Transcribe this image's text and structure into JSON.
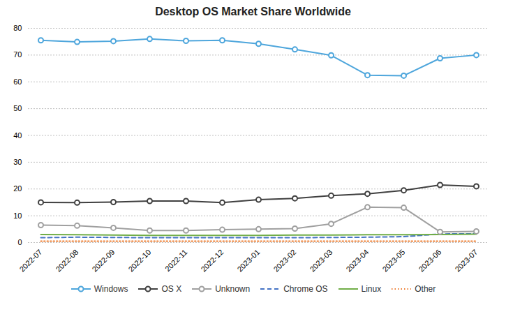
{
  "chart_data": {
    "type": "line",
    "title": "Desktop OS Market Share Worldwide",
    "categories": [
      "2022-07",
      "2022-08",
      "2022-09",
      "2022-10",
      "2022-11",
      "2022-12",
      "2023-01",
      "2023-02",
      "2023-03",
      "2023-04",
      "2023-05",
      "2023-06",
      "2023-07"
    ],
    "series": [
      {
        "name": "Windows",
        "color": "#4ea6dc",
        "marker": "circle",
        "line_style": "solid",
        "values": [
          75.5,
          74.9,
          75.2,
          76.0,
          75.3,
          75.5,
          74.2,
          72.1,
          69.9,
          62.5,
          62.3,
          68.8,
          70.0
        ]
      },
      {
        "name": "OS X",
        "color": "#404040",
        "marker": "circle",
        "line_style": "solid",
        "values": [
          15.0,
          14.9,
          15.1,
          15.5,
          15.5,
          14.9,
          16.0,
          16.5,
          17.5,
          18.2,
          19.5,
          21.5,
          21.0
        ]
      },
      {
        "name": "Unknown",
        "color": "#a0a0a0",
        "marker": "circle",
        "line_style": "solid",
        "values": [
          6.5,
          6.3,
          5.5,
          4.5,
          4.5,
          4.8,
          5.0,
          5.2,
          7.0,
          13.2,
          13.0,
          4.0,
          4.2
        ]
      },
      {
        "name": "Chrome OS",
        "color": "#4472c4",
        "line_style": "dashed",
        "values": [
          1.8,
          2.0,
          1.9,
          1.8,
          1.8,
          1.8,
          1.8,
          1.8,
          1.9,
          2.0,
          2.2,
          3.2,
          3.3
        ]
      },
      {
        "name": "Linux",
        "color": "#70ad47",
        "line_style": "solid",
        "values": [
          3.0,
          2.9,
          2.8,
          2.7,
          2.7,
          2.7,
          2.7,
          2.8,
          2.8,
          2.9,
          2.9,
          3.0,
          3.1
        ]
      },
      {
        "name": "Other",
        "color": "#ed7d31",
        "line_style": "dotted",
        "values": [
          0.5,
          0.5,
          0.5,
          0.5,
          0.5,
          0.5,
          0.5,
          0.5,
          0.5,
          0.5,
          0.5,
          0.5,
          0.5
        ]
      }
    ],
    "ylim": [
      0,
      80
    ],
    "yticks": [
      0,
      10,
      20,
      30,
      40,
      50,
      60,
      70,
      80
    ],
    "grid": true,
    "legend": "bottom"
  }
}
